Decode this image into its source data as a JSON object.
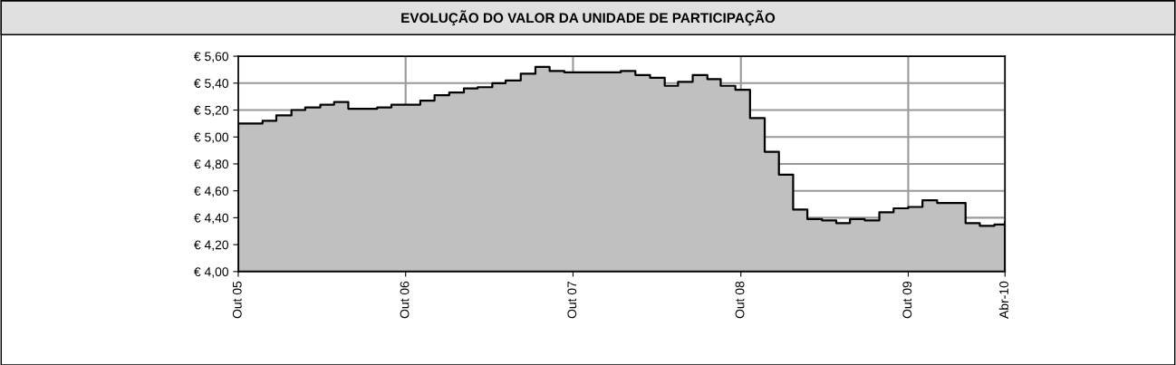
{
  "chart_data": {
    "type": "area",
    "title": "EVOLUÇÃO DO VALOR DA UNIDADE DE PARTICIPAÇÃO",
    "x": [
      "2005-10-01",
      "2005-11-23",
      "2005-12-23",
      "2006-01-25",
      "2006-02-24",
      "2006-03-29",
      "2006-04-28",
      "2006-05-29",
      "2006-06-30",
      "2006-07-31",
      "2006-08-31",
      "2006-10-02",
      "2006-11-02",
      "2006-12-03",
      "2007-01-04",
      "2007-02-05",
      "2007-03-07",
      "2007-04-08",
      "2007-05-07",
      "2007-06-09",
      "2007-07-11",
      "2007-08-11",
      "2007-09-12",
      "2007-10-13",
      "2007-11-13",
      "2007-12-15",
      "2008-01-13",
      "2008-02-14",
      "2008-03-17",
      "2008-04-18",
      "2008-05-17",
      "2008-06-18",
      "2008-07-20",
      "2008-08-18",
      "2008-09-19",
      "2008-10-21",
      "2008-11-22",
      "2008-12-23",
      "2009-01-23",
      "2009-02-23",
      "2009-03-27",
      "2009-04-27",
      "2009-05-27",
      "2009-06-28",
      "2009-07-30",
      "2009-08-30",
      "2009-10-01",
      "2009-11-01",
      "2009-12-03",
      "2010-01-03",
      "2010-02-03",
      "2010-03-06",
      "2010-04-07",
      "2010-04-30"
    ],
    "series": [
      {
        "color": "#c0c0c0",
        "values": [
          5.1,
          5.12,
          5.16,
          5.2,
          5.22,
          5.24,
          5.26,
          5.21,
          5.21,
          5.22,
          5.24,
          5.24,
          5.27,
          5.31,
          5.33,
          5.36,
          5.37,
          5.4,
          5.42,
          5.47,
          5.52,
          5.49,
          5.48,
          5.48,
          5.48,
          5.48,
          5.49,
          5.46,
          5.44,
          5.38,
          5.41,
          5.46,
          5.43,
          5.38,
          5.35,
          5.14,
          4.89,
          4.72,
          4.46,
          4.39,
          4.38,
          4.36,
          4.39,
          4.38,
          4.44,
          4.47,
          4.48,
          4.53,
          4.51,
          4.51,
          4.36,
          4.34,
          4.35,
          4.37
        ]
      }
    ],
    "xlim": [
      "2005-10-01",
      "2010-04-30"
    ],
    "xticks": [
      {
        "value": "2005-10-01",
        "label": "Out 05"
      },
      {
        "value": "2006-10-01",
        "label": "Out 06"
      },
      {
        "value": "2007-10-01",
        "label": "Out 07"
      },
      {
        "value": "2008-10-01",
        "label": "Out 08"
      },
      {
        "value": "2009-10-01",
        "label": "Out 09"
      },
      {
        "value": "2010-04-30",
        "label": "Abr-10"
      }
    ],
    "ylim": [
      4.0,
      5.6
    ],
    "yticks": [
      {
        "value": 4.0,
        "label": "€ 4,00"
      },
      {
        "value": 4.2,
        "label": "€ 4,20"
      },
      {
        "value": 4.4,
        "label": "€ 4,40"
      },
      {
        "value": 4.6,
        "label": "€ 4,60"
      },
      {
        "value": 4.8,
        "label": "€ 4,80"
      },
      {
        "value": 5.0,
        "label": "€ 5,00"
      },
      {
        "value": 5.2,
        "label": "€ 5,20"
      },
      {
        "value": 5.4,
        "label": "€ 5,40"
      },
      {
        "value": 5.6,
        "label": "€ 5,60"
      }
    ],
    "grid": true,
    "legend": false
  }
}
